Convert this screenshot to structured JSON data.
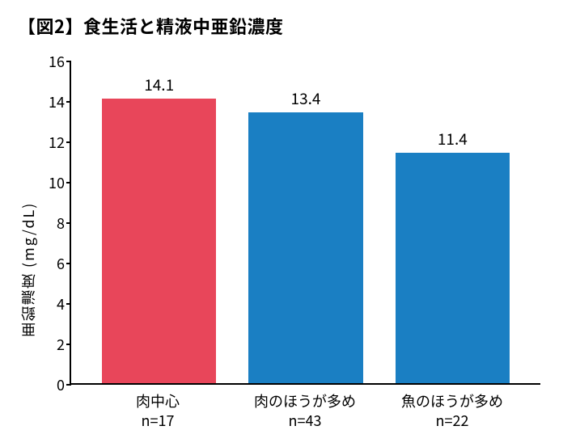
{
  "title": "【図2】食生活と精液中亜鉛濃度",
  "chart": {
    "type": "bar",
    "ylabel": "亜鉛濃度 (mg/dL)",
    "ylim": [
      0,
      16
    ],
    "ytick_step": 2,
    "yticks": [
      0,
      2,
      4,
      6,
      8,
      10,
      12,
      14,
      16
    ],
    "background_color": "#ffffff",
    "axis_color": "#000000",
    "title_fontsize": 22,
    "label_fontsize": 18,
    "value_fontsize": 19,
    "bar_width": 0.78,
    "bars": [
      {
        "label_line1": "肉中心",
        "label_line2": "n=17",
        "value": 14.1,
        "value_text": "14.1",
        "color": "#e8465a"
      },
      {
        "label_line1": "肉のほうが多め",
        "label_line2": "n=43",
        "value": 13.4,
        "value_text": "13.4",
        "color": "#1a7fc3"
      },
      {
        "label_line1": "魚のほうが多め",
        "label_line2": "n=22",
        "value": 11.4,
        "value_text": "11.4",
        "color": "#1a7fc3"
      }
    ]
  }
}
